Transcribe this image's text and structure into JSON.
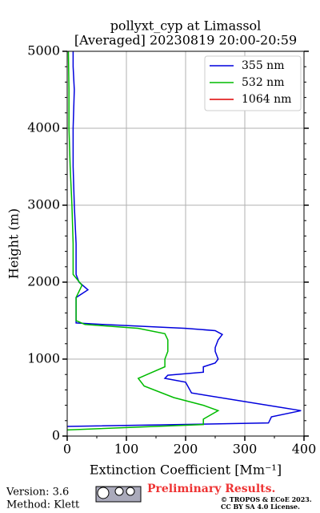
{
  "chart_data": {
    "type": "line",
    "title": "pollyxt_cyp at Limassol",
    "subtitle": "[Averaged] 20230819 20:00-20:59",
    "x_label": "Extinction Coefficient [Mm⁻¹]",
    "y_label": "Height (m)",
    "xlim": [
      0,
      400
    ],
    "xticks": [
      0,
      100,
      200,
      300,
      400
    ],
    "ylim": [
      0,
      5000
    ],
    "yticks": [
      0,
      1000,
      2000,
      3000,
      4000,
      5000
    ],
    "grid": true,
    "legend": "upper right",
    "series": [
      {
        "name": "355 nm",
        "color": "#0000dd",
        "x": [
          0,
          340,
          345,
          395,
          210,
          200,
          165,
          170,
          230,
          230,
          250,
          255,
          250,
          250,
          255,
          262,
          250,
          200,
          60,
          15,
          15,
          15,
          35,
          20,
          15,
          15,
          12,
          10,
          10,
          12,
          10,
          10
        ],
        "values": [
          125,
          170,
          250,
          330,
          560,
          700,
          750,
          790,
          830,
          900,
          950,
          1000,
          1100,
          1150,
          1250,
          1320,
          1370,
          1400,
          1450,
          1470,
          1600,
          1800,
          1900,
          2000,
          2100,
          2500,
          3000,
          3500,
          4000,
          4500,
          4800,
          5000
        ]
      },
      {
        "name": "532 nm",
        "color": "#00bb00",
        "x": [
          0,
          230,
          230,
          255,
          230,
          180,
          130,
          120,
          135,
          165,
          165,
          170,
          170,
          165,
          120,
          30,
          15,
          15,
          25,
          10,
          10,
          8,
          5,
          3,
          3,
          2
        ],
        "values": [
          80,
          150,
          220,
          330,
          400,
          500,
          650,
          750,
          800,
          900,
          1000,
          1100,
          1250,
          1330,
          1400,
          1450,
          1500,
          1800,
          1960,
          2100,
          2500,
          3000,
          3500,
          4000,
          4500,
          5000
        ]
      },
      {
        "name": "1064 nm",
        "color": "#dd0000",
        "x": [],
        "values": []
      }
    ]
  },
  "footer": {
    "version": "Version: 3.6",
    "method": "Method: Klett",
    "notice": "Preliminary Results.",
    "copyright": "© TROPOS & ECoE 2023.",
    "license": "CC BY SA 4.0 License."
  }
}
